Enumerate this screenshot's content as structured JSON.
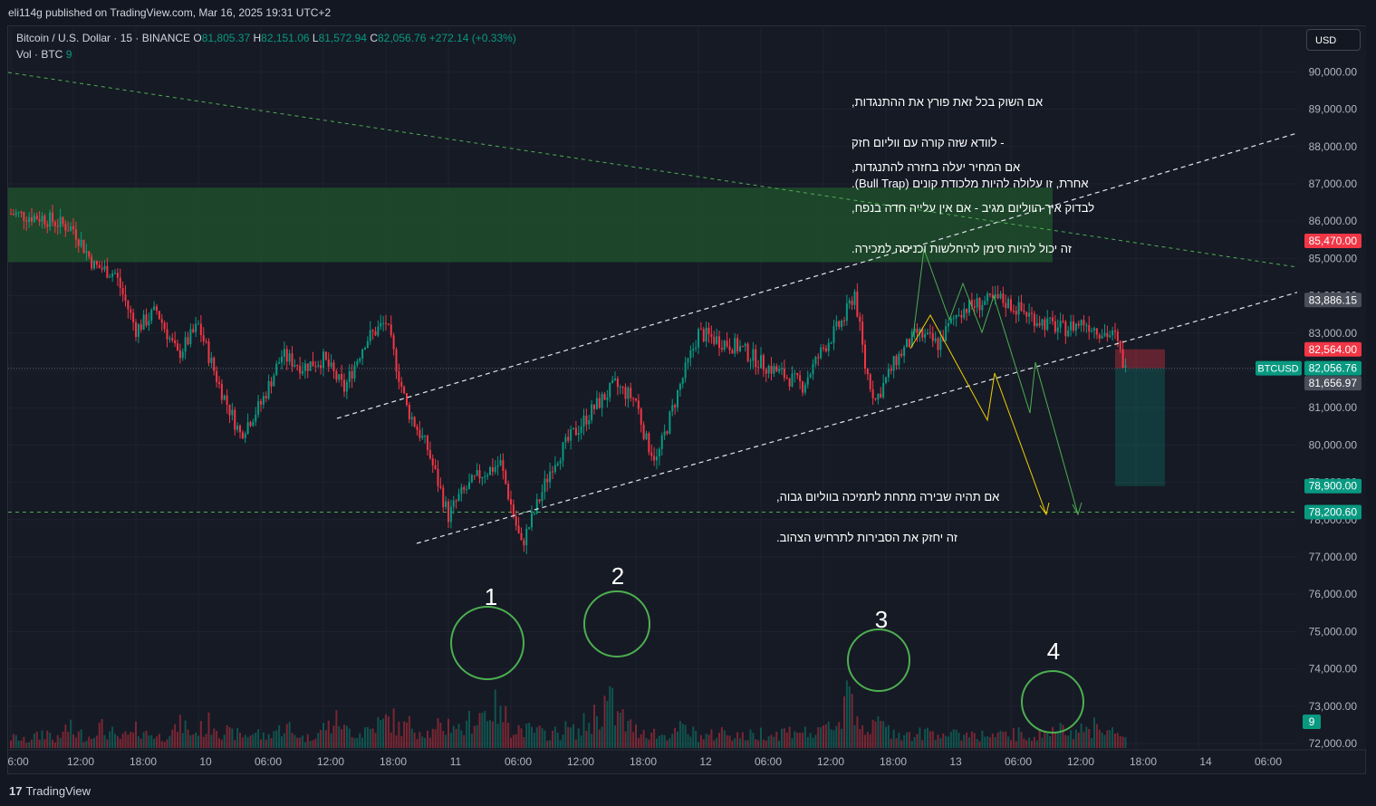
{
  "header": {
    "published": "eli114g published on TradingView.com, Mar 16, 2025 19:31 UTC+2"
  },
  "legend": {
    "symbol": "Bitcoin / U.S. Dollar · 15 · BINANCE",
    "o_label": "O",
    "o_value": "81,805.37",
    "h_label": "H",
    "h_value": "82,151.06",
    "l_label": "L",
    "l_value": "81,572.94",
    "c_label": "C",
    "c_value": "82,056.76",
    "change": "+272.14 (+0.33%)",
    "volume_label": "Vol · BTC",
    "volume_value": "9"
  },
  "currency_button": "USD",
  "footer": {
    "brand_mark": "17",
    "brand": "TradingView"
  },
  "notes": [
    {
      "id": "note-bull-trap",
      "lines": [
        "אם השוק בכל זאת פורץ את ההתנגדות,",
        "- לוודא שזה קורה עם ווליום חזק",
        "אחרת, זו עלולה להיות מלכודת קונים (Bull Trap)."
      ]
    },
    {
      "id": "note-resistance",
      "lines": [
        "אם המחיר יעלה בחזרה להתנגדות,",
        "לבדוק איך הווליום מגיב - אם אין עלייה חדה בנפח,",
        "זה יכול להיות סימן להיחלשות וכניסה למכירה."
      ]
    },
    {
      "id": "note-breakdown",
      "lines": [
        "אם תהיה שבירה מתחת לתמיכה בווליום גבוה,",
        "זה יחזק את הסבירות לתרחיש הצהוב."
      ]
    }
  ],
  "volume_circles": [
    {
      "label": "1"
    },
    {
      "label": "2"
    },
    {
      "label": "3"
    },
    {
      "label": "4"
    }
  ],
  "chart_data": {
    "type": "candlestick",
    "symbol": "BTCUSD",
    "interval": "15",
    "exchange": "BINANCE",
    "ylim": [
      72000,
      90500
    ],
    "y_ticks": [
      72000,
      73000,
      74000,
      75000,
      76000,
      77000,
      78000,
      79000,
      80000,
      81000,
      82000,
      83000,
      84000,
      85000,
      86000,
      87000,
      88000,
      89000,
      90000
    ],
    "y_tick_labels": [
      "72,000.00",
      "73,000.00",
      "74,000.00",
      "75,000.00",
      "76,000.00",
      "77,000.00",
      "78,000.00",
      "79,000.00",
      "80,000.00",
      "81,000.00",
      "82,000.00",
      "83,000.00",
      "84,000.00",
      "85,000.00",
      "86,000.00",
      "87,000.00",
      "88,000.00",
      "89,000.00",
      "90,000.00"
    ],
    "x_ticks": [
      {
        "t": 0,
        "label": "6:00"
      },
      {
        "t": 6,
        "label": "12:00"
      },
      {
        "t": 12,
        "label": "18:00"
      },
      {
        "t": 18,
        "label": "10"
      },
      {
        "t": 24,
        "label": "06:00"
      },
      {
        "t": 30,
        "label": "12:00"
      },
      {
        "t": 36,
        "label": "18:00"
      },
      {
        "t": 42,
        "label": "11"
      },
      {
        "t": 48,
        "label": "06:00"
      },
      {
        "t": 54,
        "label": "12:00"
      },
      {
        "t": 60,
        "label": "18:00"
      },
      {
        "t": 66,
        "label": "12"
      },
      {
        "t": 72,
        "label": "06:00"
      },
      {
        "t": 78,
        "label": "12:00"
      },
      {
        "t": 84,
        "label": "18:00"
      },
      {
        "t": 90,
        "label": "13"
      },
      {
        "t": 96,
        "label": "06:00"
      },
      {
        "t": 102,
        "label": "12:00"
      },
      {
        "t": 108,
        "label": "18:00"
      },
      {
        "t": 114,
        "label": "14"
      },
      {
        "t": 120,
        "label": "06:00"
      }
    ],
    "price_path": [
      [
        0,
        86200
      ],
      [
        3,
        86100
      ],
      [
        6,
        85800
      ],
      [
        8,
        84800
      ],
      [
        10,
        84600
      ],
      [
        12,
        83100
      ],
      [
        14,
        83600
      ],
      [
        16,
        82400
      ],
      [
        18,
        83200
      ],
      [
        20,
        81600
      ],
      [
        22,
        80300
      ],
      [
        24,
        81100
      ],
      [
        26,
        82400
      ],
      [
        28,
        82100
      ],
      [
        30,
        82300
      ],
      [
        32,
        81500
      ],
      [
        34,
        82800
      ],
      [
        36,
        83300
      ],
      [
        38,
        81000
      ],
      [
        40,
        79900
      ],
      [
        42,
        78100
      ],
      [
        43,
        78600
      ],
      [
        45,
        79200
      ],
      [
        47,
        79500
      ],
      [
        49,
        77300
      ],
      [
        50,
        78000
      ],
      [
        52,
        79500
      ],
      [
        54,
        80300
      ],
      [
        56,
        81000
      ],
      [
        58,
        81600
      ],
      [
        60,
        81200
      ],
      [
        61,
        80100
      ],
      [
        62,
        79600
      ],
      [
        64,
        81400
      ],
      [
        66,
        83000
      ],
      [
        68,
        82800
      ],
      [
        70,
        82600
      ],
      [
        72,
        82200
      ],
      [
        74,
        81900
      ],
      [
        76,
        81600
      ],
      [
        78,
        82600
      ],
      [
        80,
        83400
      ],
      [
        81,
        84100
      ],
      [
        82,
        82100
      ],
      [
        83,
        81200
      ],
      [
        85,
        82300
      ],
      [
        87,
        83000
      ],
      [
        89,
        82700
      ],
      [
        91,
        83600
      ],
      [
        93,
        83800
      ],
      [
        95,
        83900
      ],
      [
        97,
        83600
      ],
      [
        99,
        83300
      ],
      [
        101,
        83100
      ],
      [
        103,
        83300
      ],
      [
        105,
        83000
      ],
      [
        106,
        82900
      ],
      [
        107,
        82000
      ]
    ],
    "volume": [
      0.8,
      0.6,
      0.9,
      1.2,
      0.7,
      1.5,
      1.1,
      0.9,
      1.6,
      1.2,
      0.8,
      1.0,
      1.4,
      1.1,
      0.9,
      1.3,
      1.8,
      1.2,
      1.5,
      1.9,
      1.3,
      1.1,
      1.0,
      1.2,
      0.9,
      1.4,
      1.6,
      1.1,
      0.8,
      1.2,
      1.7,
      2.1,
      1.4,
      1.2,
      1.5,
      1.9,
      2.2,
      1.6,
      1.8,
      1.4,
      1.2,
      1.6,
      1.9,
      1.5,
      2.2,
      2.8,
      3.1,
      2.4,
      1.6,
      1.4,
      1.3,
      1.1,
      1.2,
      1.5,
      1.3,
      1.9,
      2.6,
      3.5,
      2.4,
      1.7,
      1.4,
      1.2,
      1.0,
      1.1,
      1.5,
      1.2,
      0.9,
      1.0,
      1.3,
      1.1,
      0.9,
      1.0,
      1.2,
      1.1,
      1.3,
      1.5,
      1.2,
      1.1,
      1.6,
      2.0,
      4.9,
      2.3,
      1.5,
      1.9,
      1.4,
      1.2,
      1.0,
      1.1,
      1.3,
      1.2,
      1.0,
      1.1,
      1.2,
      1.0,
      0.9,
      1.0,
      1.1,
      0.9,
      1.0,
      1.2,
      1.4,
      1.9,
      1.3,
      1.4,
      2.0,
      1.3,
      0.9
    ],
    "volume_label": "9",
    "zones": {
      "resistance_zone": [
        84900,
        86900
      ],
      "short_position": {
        "entry": 82056.76,
        "stop": 82564.0,
        "target": 78900.0
      },
      "support_level": 78200.6
    },
    "price_labels": [
      {
        "value": 85470.0,
        "text": "85,470.00",
        "color": "#f23645"
      },
      {
        "value": 83886.15,
        "text": "83,886.15",
        "color": "#4a4e5a"
      },
      {
        "value": 82564.0,
        "text": "82,564.00",
        "color": "#f23645"
      },
      {
        "value": 82056.76,
        "text": "82,056.76",
        "color": "#089981",
        "tag": "BTCUSD"
      },
      {
        "value": 81656.97,
        "text": "81,656.97",
        "color": "#4a4e5a"
      },
      {
        "value": 78900.0,
        "text": "78,900.00",
        "color": "#089981"
      },
      {
        "value": 78200.6,
        "text": "78,200.60",
        "color": "#089981"
      }
    ],
    "colors": {
      "up": "#089981",
      "down": "#f23645",
      "zone": "#1e4d2b",
      "scenario_yellow": "#f0d000",
      "scenario_green": "#4caf50"
    }
  }
}
